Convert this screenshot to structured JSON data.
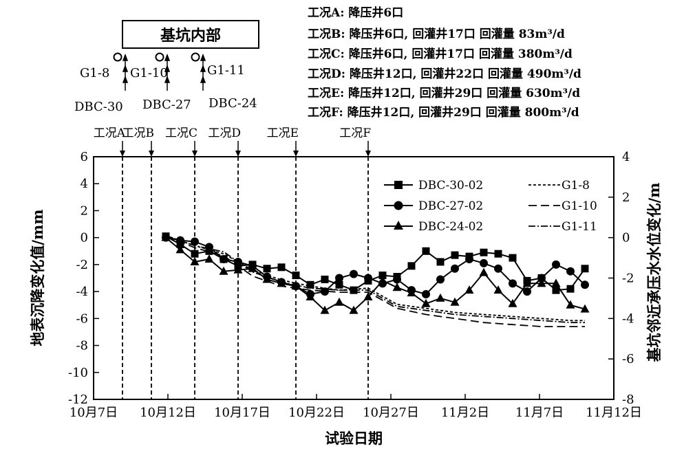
{
  "schematic": {
    "box_title": "基坑内部",
    "well_labels": [
      "G1-8",
      "G1-10",
      "G1-11"
    ],
    "point_labels": [
      "DBC-30",
      "DBC-27",
      "DBC-24"
    ]
  },
  "conditions": {
    "descriptions": [
      "工况A: 降压井6口",
      "工况B: 降压井6口, 回灌井17口 回灌量 83m³/d",
      "工况C: 降压井6口, 回灌井17口 回灌量 380m³/d",
      "工况D: 降压井12口, 回灌井22口 回灌量 490m³/d",
      "工况E: 降压井12口, 回灌井29口 回灌量 630m³/d",
      "工况F: 降压井12口, 回灌井29口 回灌量 800m³/d"
    ]
  },
  "colors": {
    "line": "#000000",
    "background": "#ffffff"
  },
  "chart_data": {
    "type": "line",
    "xlabel": "试验日期",
    "ylabel": "地表沉降变化值/mm",
    "y2label": "基坑邻近承压水水位变化/m",
    "x_ticks": [
      "10月7日",
      "10月12日",
      "10月17日",
      "10月22日",
      "10月27日",
      "11月2日",
      "11月7日",
      "11月12日"
    ],
    "ylim": [
      -12,
      6
    ],
    "y_ticks": [
      6,
      4,
      2,
      0,
      -2,
      -4,
      -6,
      -8,
      -10,
      -12
    ],
    "y2lim": [
      -8,
      4
    ],
    "y2_ticks": [
      4,
      2,
      0,
      -2,
      -4,
      -6,
      -8
    ],
    "conditions": [
      {
        "label": "工况A",
        "day": 2
      },
      {
        "label": "工况B",
        "day": 4
      },
      {
        "label": "工况C",
        "day": 7
      },
      {
        "label": "工况D",
        "day": 10
      },
      {
        "label": "工况E",
        "day": 14
      },
      {
        "label": "工况F",
        "day": 19
      }
    ],
    "settlement_series": [
      {
        "name": "DBC-30-02",
        "marker": "square",
        "x": [
          5,
          6,
          7,
          8,
          9,
          10,
          11,
          12,
          13,
          14,
          15,
          16,
          17,
          18,
          19,
          20,
          21,
          22,
          23,
          24,
          25,
          26,
          27,
          28,
          29,
          30,
          31,
          32,
          33,
          34
        ],
        "y": [
          0.1,
          -0.5,
          -1.2,
          -1.0,
          -1.6,
          -2.1,
          -2.0,
          -2.3,
          -2.2,
          -2.8,
          -3.5,
          -3.1,
          -3.5,
          -3.9,
          -3.2,
          -2.8,
          -2.9,
          -2.1,
          -1.0,
          -1.8,
          -1.3,
          -1.4,
          -1.1,
          -1.2,
          -1.5,
          -3.2,
          -3.0,
          -3.9,
          -3.8,
          -2.3
        ]
      },
      {
        "name": "DBC-27-02",
        "marker": "circle",
        "x": [
          5,
          6,
          7,
          8,
          9,
          10,
          11,
          12,
          13,
          14,
          15,
          16,
          17,
          18,
          19,
          20,
          21,
          22,
          23,
          24,
          25,
          26,
          27,
          28,
          29,
          30,
          31,
          32,
          33,
          34
        ],
        "y": [
          0.0,
          -0.2,
          -0.3,
          -0.7,
          -1.6,
          -1.8,
          -2.1,
          -2.9,
          -3.3,
          -3.6,
          -4.2,
          -4.0,
          -3.0,
          -2.7,
          -3.0,
          -3.4,
          -3.1,
          -3.9,
          -4.2,
          -3.1,
          -2.3,
          -1.6,
          -1.9,
          -2.3,
          -3.4,
          -4.0,
          -3.0,
          -2.0,
          -2.5,
          -3.5
        ]
      },
      {
        "name": "DBC-24-02",
        "marker": "triangle",
        "x": [
          5,
          6,
          7,
          8,
          9,
          10,
          11,
          12,
          13,
          14,
          15,
          16,
          17,
          18,
          19,
          20,
          21,
          22,
          23,
          24,
          25,
          26,
          27,
          28,
          29,
          30,
          31,
          32,
          33,
          34
        ],
        "y": [
          0.0,
          -0.9,
          -1.8,
          -1.6,
          -2.5,
          -2.4,
          -2.3,
          -3.1,
          -3.4,
          -3.6,
          -4.4,
          -5.4,
          -4.8,
          -5.4,
          -4.4,
          -3.2,
          -3.7,
          -4.1,
          -4.9,
          -4.5,
          -4.8,
          -3.9,
          -2.6,
          -3.9,
          -4.9,
          -3.4,
          -3.4,
          -3.4,
          -5.0,
          -5.3
        ]
      }
    ],
    "water_level_series": [
      {
        "name": "G1-8",
        "dash": "short",
        "x": [
          5,
          7,
          9,
          11,
          13,
          15,
          17,
          19,
          21,
          23,
          25,
          27,
          29,
          31,
          33,
          34
        ],
        "y": [
          0.1,
          -0.4,
          -0.8,
          -1.6,
          -2.1,
          -2.4,
          -2.6,
          -2.5,
          -3.3,
          -3.5,
          -3.7,
          -3.8,
          -3.9,
          -4.0,
          -4.1,
          -4.1
        ]
      },
      {
        "name": "G1-10",
        "dash": "long",
        "x": [
          5,
          7,
          9,
          11,
          13,
          15,
          17,
          19,
          21,
          23,
          25,
          27,
          29,
          31,
          33,
          34
        ],
        "y": [
          0.1,
          -0.5,
          -0.9,
          -1.9,
          -2.4,
          -2.6,
          -2.7,
          -2.7,
          -3.5,
          -3.8,
          -4.0,
          -4.2,
          -4.3,
          -4.4,
          -4.4,
          -4.4
        ]
      },
      {
        "name": "G1-11",
        "dash": "dashdot",
        "x": [
          5,
          7,
          9,
          11,
          13,
          15,
          17,
          19,
          21,
          23,
          25,
          27,
          29,
          31,
          33,
          34
        ],
        "y": [
          0.1,
          -0.4,
          -0.7,
          -1.7,
          -2.2,
          -2.5,
          -2.6,
          -2.6,
          -3.4,
          -3.6,
          -3.8,
          -3.9,
          -4.0,
          -4.1,
          -4.2,
          -4.2
        ]
      }
    ]
  }
}
